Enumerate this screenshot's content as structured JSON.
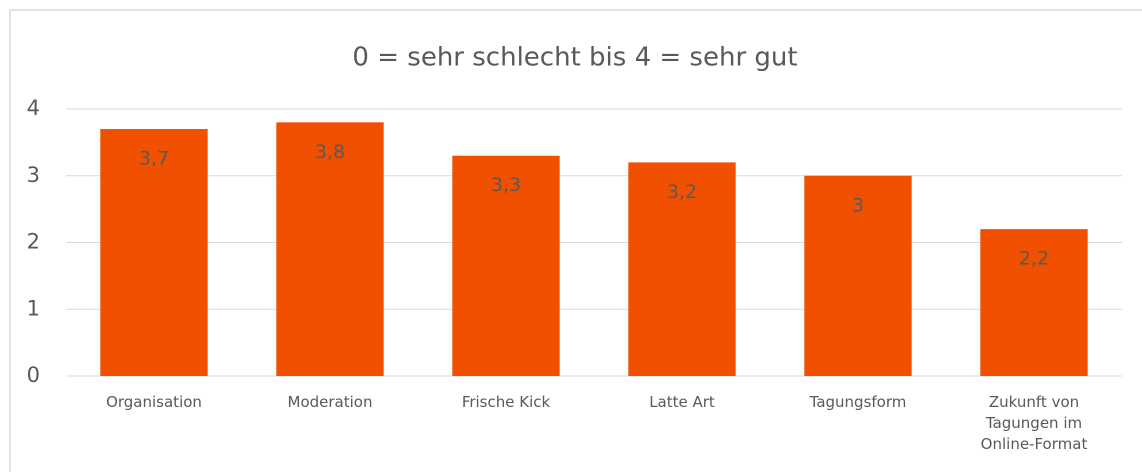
{
  "chart_data": {
    "type": "bar",
    "title": "0 = sehr schlecht bis 4 = sehr gut",
    "categories": [
      "Organisation",
      "Moderation",
      "Frische Kick",
      "Latte Art",
      "Tagungsform",
      "Zukunft von Tagungen im Online-Format"
    ],
    "values": [
      3.7,
      3.8,
      3.3,
      3.2,
      3,
      2.2
    ],
    "value_labels": [
      "3,7",
      "3,8",
      "3,3",
      "3,2",
      "3",
      "2,2"
    ],
    "color": "#f05000",
    "ylim": [
      0,
      4
    ],
    "yticks": [
      0,
      1,
      2,
      3,
      4
    ],
    "grid": true
  }
}
